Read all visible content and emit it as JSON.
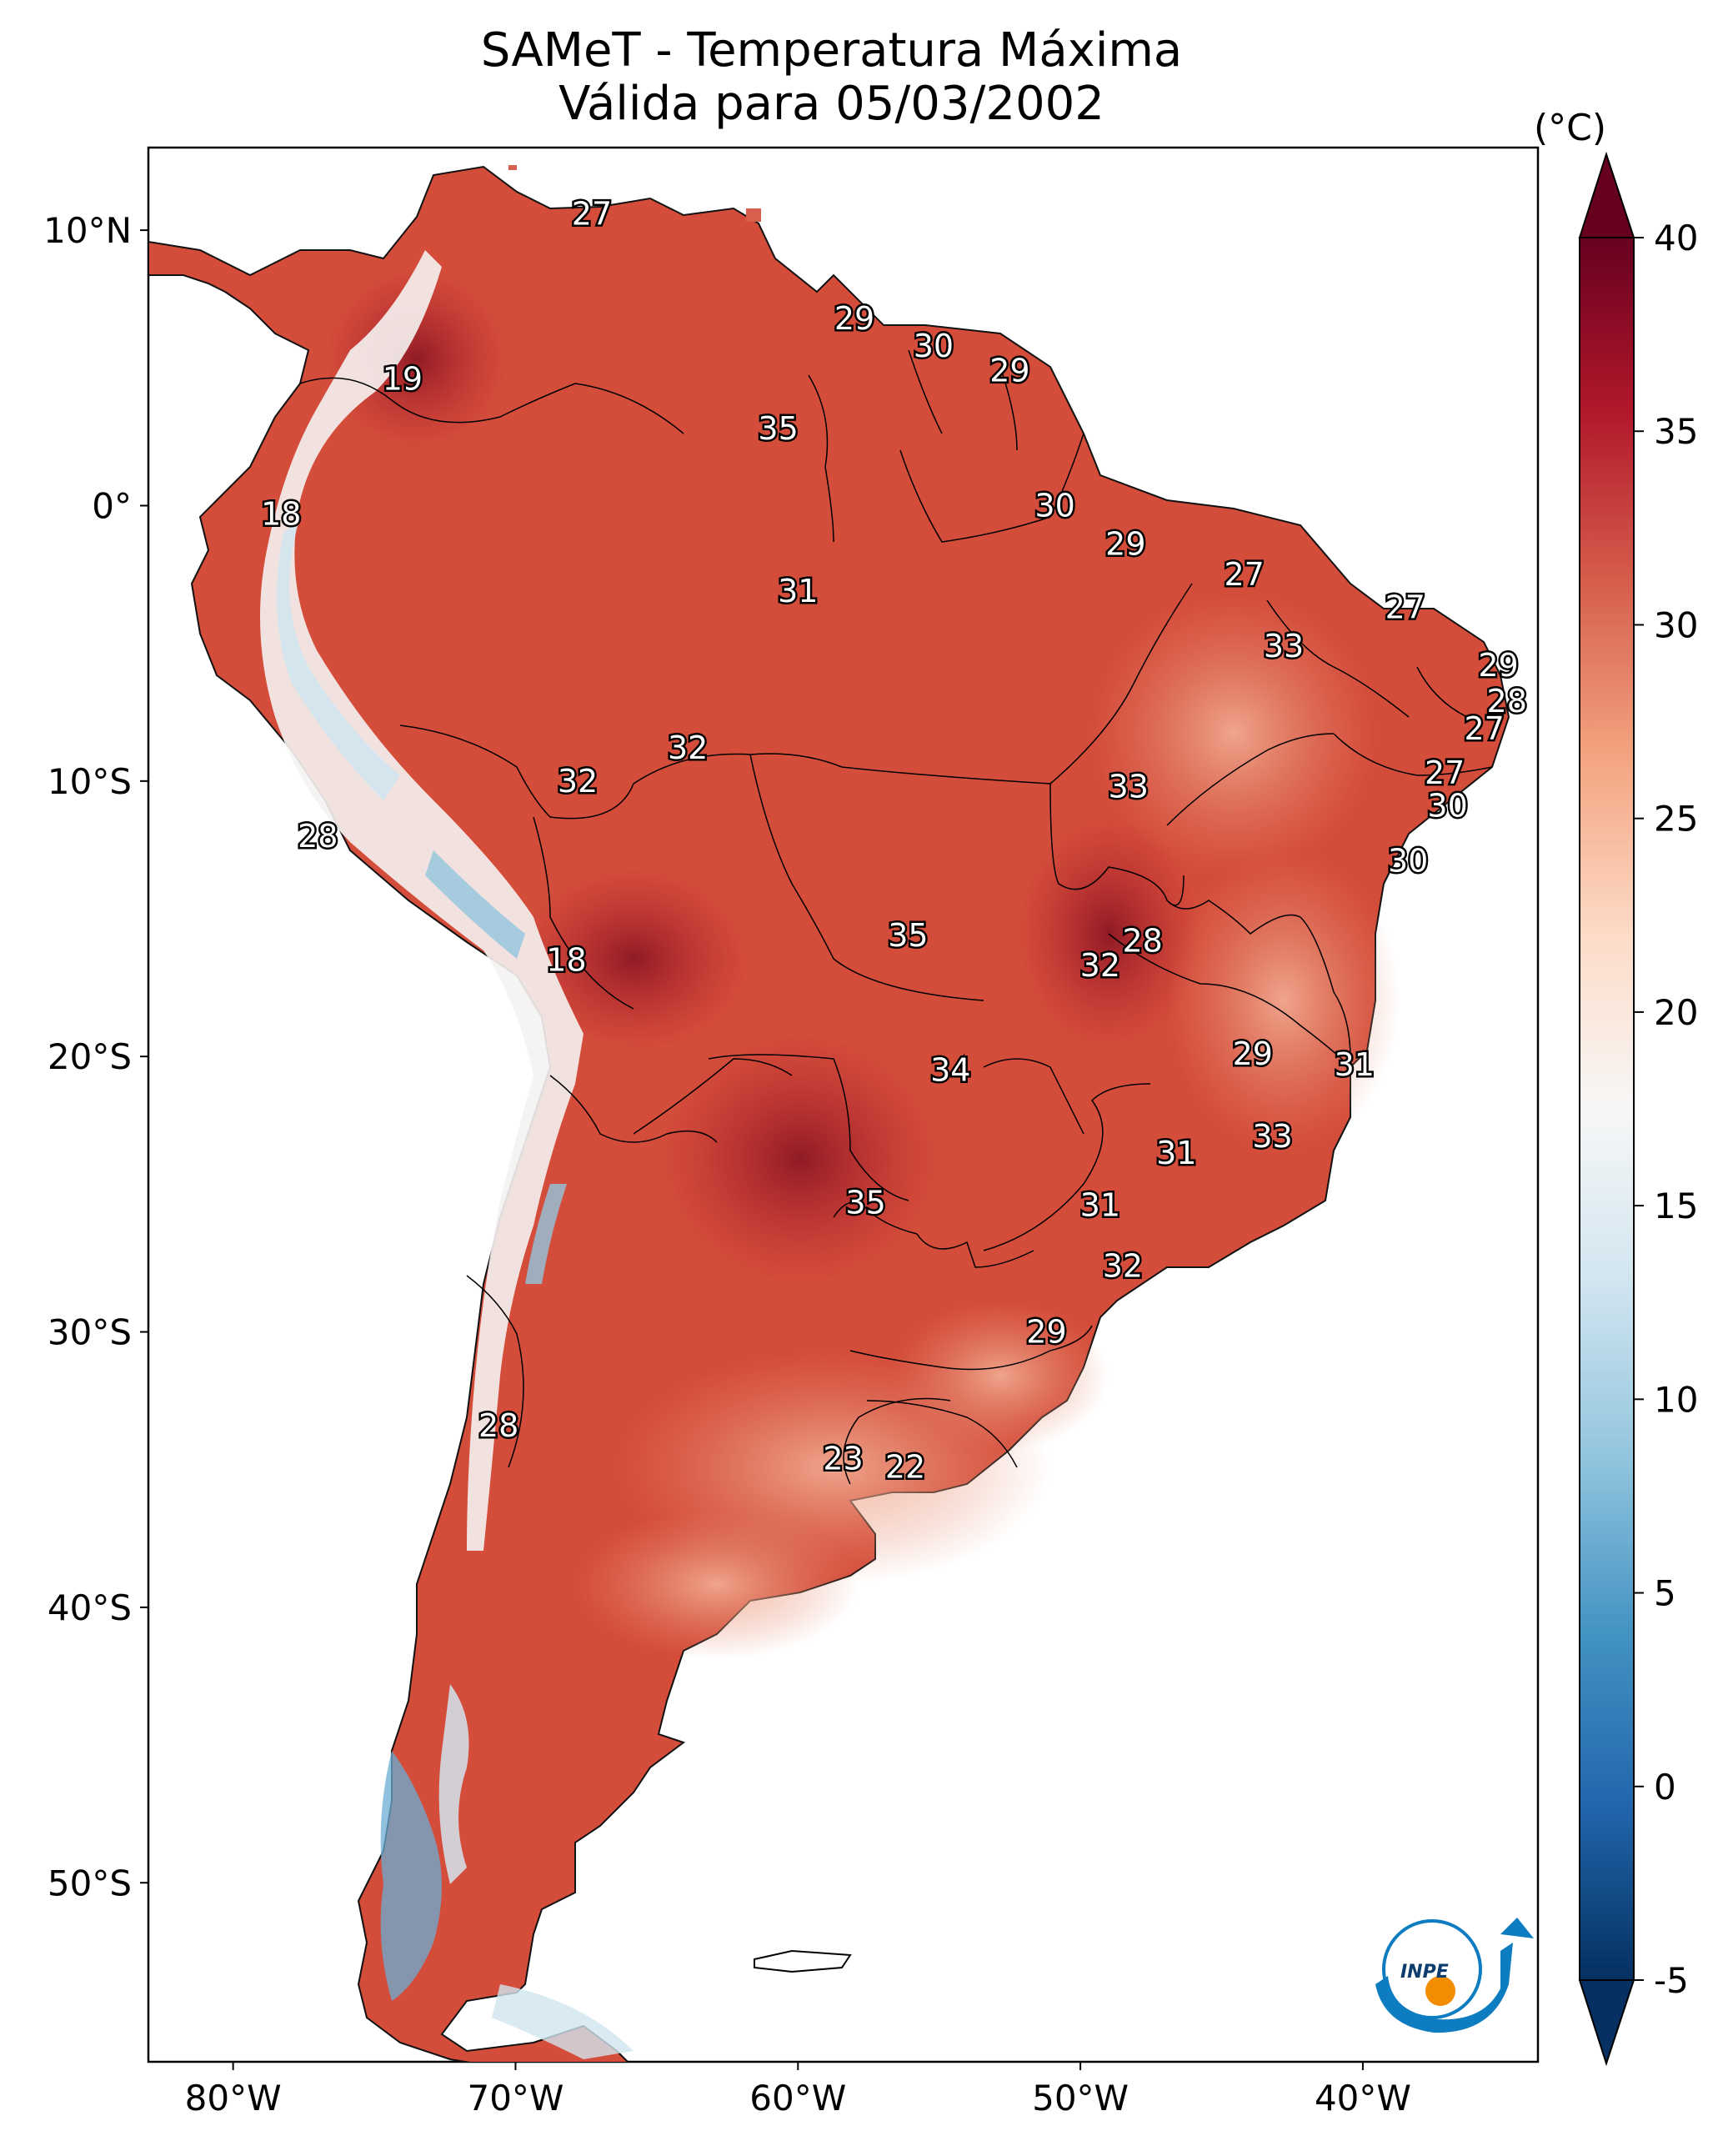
{
  "title": {
    "line1": "SAMeT - Temperatura Máxima",
    "line2": "Válida para 05/03/2002"
  },
  "colorbar": {
    "unit": "(°C)",
    "ticks": [
      "40",
      "35",
      "30",
      "25",
      "20",
      "15",
      "10",
      "5",
      "0",
      "-5"
    ],
    "min": -5,
    "max": 40,
    "colors": [
      "#053061",
      "#2166ac",
      "#4393c3",
      "#92c5de",
      "#d1e5f0",
      "#f7f7f7",
      "#fddbc7",
      "#f4a582",
      "#d6604d",
      "#b2182b",
      "#67001f"
    ]
  },
  "axes": {
    "lat_labels": [
      "10°N",
      "0°",
      "10°S",
      "20°S",
      "30°S",
      "40°S",
      "50°S"
    ],
    "lon_labels": [
      "80°W",
      "70°W",
      "60°W",
      "50°W",
      "40°W"
    ]
  },
  "station_labels": [
    {
      "text": "27",
      "lon": -67.3,
      "lat": 10.6
    },
    {
      "text": "19",
      "lon": -74.0,
      "lat": 4.6
    },
    {
      "text": "18",
      "lon": -78.3,
      "lat": -0.3
    },
    {
      "text": "29",
      "lon": -58.0,
      "lat": 6.8
    },
    {
      "text": "30",
      "lon": -55.2,
      "lat": 5.8
    },
    {
      "text": "29",
      "lon": -52.5,
      "lat": 4.9
    },
    {
      "text": "35",
      "lon": -60.7,
      "lat": 2.8
    },
    {
      "text": "30",
      "lon": -50.9,
      "lat": 0.0
    },
    {
      "text": "29",
      "lon": -48.4,
      "lat": -1.4
    },
    {
      "text": "31",
      "lon": -60.0,
      "lat": -3.1
    },
    {
      "text": "27",
      "lon": -44.2,
      "lat": -2.5
    },
    {
      "text": "27",
      "lon": -38.5,
      "lat": -3.7
    },
    {
      "text": "33",
      "lon": -42.8,
      "lat": -5.1
    },
    {
      "text": "29",
      "lon": -35.2,
      "lat": -5.8
    },
    {
      "text": "28",
      "lon": -34.9,
      "lat": -7.1
    },
    {
      "text": "27",
      "lon": -35.7,
      "lat": -8.1
    },
    {
      "text": "27",
      "lon": -37.1,
      "lat": -9.7
    },
    {
      "text": "32",
      "lon": -63.9,
      "lat": -8.8
    },
    {
      "text": "32",
      "lon": -67.8,
      "lat": -10.0
    },
    {
      "text": "33",
      "lon": -48.3,
      "lat": -10.2
    },
    {
      "text": "30",
      "lon": -37.0,
      "lat": -10.9
    },
    {
      "text": "28",
      "lon": -77.0,
      "lat": -12.0
    },
    {
      "text": "30",
      "lon": -38.4,
      "lat": -12.9
    },
    {
      "text": "35",
      "lon": -56.1,
      "lat": -15.6
    },
    {
      "text": "28",
      "lon": -47.8,
      "lat": -15.8
    },
    {
      "text": "32",
      "lon": -49.3,
      "lat": -16.7
    },
    {
      "text": "18",
      "lon": -68.2,
      "lat": -16.5
    },
    {
      "text": "29",
      "lon": -43.9,
      "lat": -19.9
    },
    {
      "text": "31",
      "lon": -40.3,
      "lat": -20.3
    },
    {
      "text": "34",
      "lon": -54.6,
      "lat": -20.5
    },
    {
      "text": "33",
      "lon": -43.2,
      "lat": -22.9
    },
    {
      "text": "31",
      "lon": -46.6,
      "lat": -23.5
    },
    {
      "text": "35",
      "lon": -57.6,
      "lat": -25.3
    },
    {
      "text": "31",
      "lon": -49.3,
      "lat": -25.4
    },
    {
      "text": "32",
      "lon": -48.5,
      "lat": -27.6
    },
    {
      "text": "29",
      "lon": -51.2,
      "lat": -30.0
    },
    {
      "text": "28",
      "lon": -70.6,
      "lat": -33.4
    },
    {
      "text": "23",
      "lon": -58.4,
      "lat": -34.6
    },
    {
      "text": "22",
      "lon": -56.2,
      "lat": -34.9
    }
  ],
  "logo": {
    "text": "INPE"
  }
}
